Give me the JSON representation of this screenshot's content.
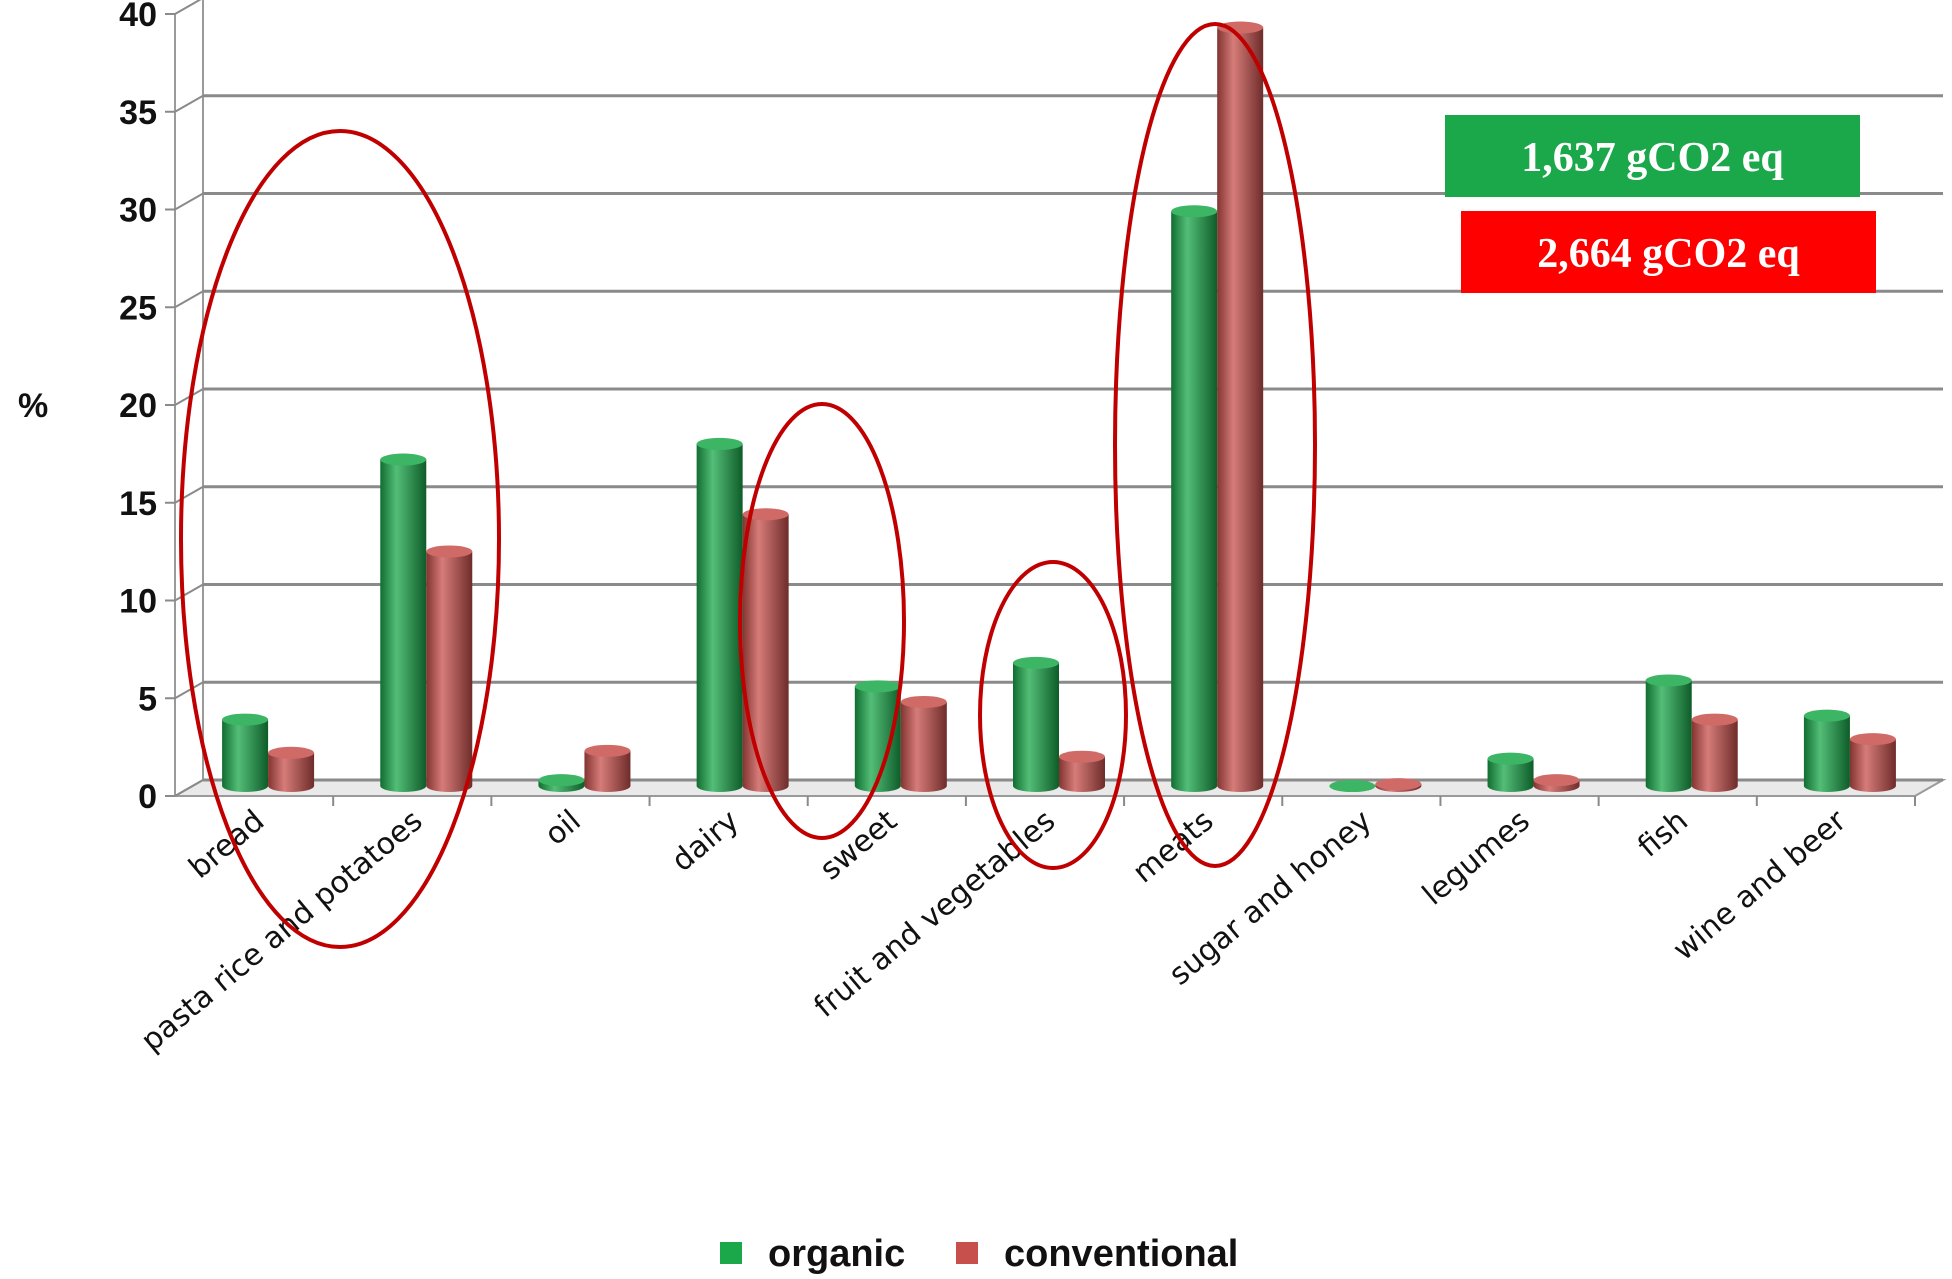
{
  "chart_data": {
    "type": "bar",
    "categories": [
      "bread",
      "pasta rice and potatoes",
      "oil",
      "dairy",
      "sweet",
      "fruit and vegetables",
      "meats",
      "sugar and honey",
      "legumes",
      "fish",
      "wine and beer"
    ],
    "series": [
      {
        "name": "organic",
        "color": "#1aa84a",
        "values": [
          3.5,
          16.8,
          0.4,
          17.6,
          5.2,
          6.4,
          29.5,
          0.1,
          1.5,
          5.5,
          3.7
        ]
      },
      {
        "name": "conventional",
        "color": "#c8504c",
        "values": [
          1.8,
          12.1,
          1.9,
          14.0,
          4.4,
          1.6,
          38.9,
          0.2,
          0.4,
          3.5,
          2.5
        ]
      }
    ],
    "ylabel": "%",
    "xlabel": "",
    "title": "",
    "ylim": [
      0,
      40
    ],
    "yticks": [
      0,
      5,
      10,
      15,
      20,
      25,
      30,
      35,
      40
    ],
    "grid": true,
    "legend_position": "bottom",
    "annotations": [
      {
        "text": "1,637 gCO2 eq",
        "color": "#1aa84a"
      },
      {
        "text": "2,664 gCO2 eq",
        "color": "#ff0000"
      }
    ],
    "highlight_color": "#c00000"
  }
}
